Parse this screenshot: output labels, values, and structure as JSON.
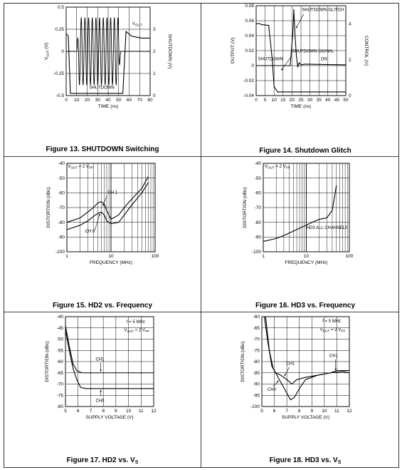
{
  "figures": [
    {
      "caption": "Figure 13. SHUTDOWN Switching"
    },
    {
      "caption": "Figure 14. Shutdown Glitch"
    },
    {
      "caption": "Figure 15. HD2 vs. Frequency"
    },
    {
      "caption": "Figure 16. HD3 vs. Frequency"
    },
    {
      "caption_main": "Figure 17. HD2 vs. V",
      "caption_sub": "S"
    },
    {
      "caption_main": "Figure 18. HD3 vs. V",
      "caption_sub": "S"
    }
  ],
  "chart_data": [
    {
      "type": "line",
      "xlabel": "TIME (ns)",
      "ylabel": "VOUT (V)",
      "y2label": "SHUTDOWN (V)",
      "xlim": [
        0,
        80
      ],
      "ylim": [
        -0.5,
        0.5
      ],
      "y2lim": [
        0,
        4
      ],
      "xticks": [
        "0",
        "10",
        "20",
        "30",
        "40",
        "50",
        "60",
        "70",
        "80"
      ],
      "yticks": [
        "-0.5",
        "-0.25",
        "0",
        "0.25",
        "0.5"
      ],
      "y2ticks": [
        "0",
        "1",
        "2",
        "3"
      ],
      "annotations": [
        "VOUT",
        "SHUTDOWN"
      ],
      "series": [
        {
          "axis": "y",
          "kind": "burst",
          "x_start": 10,
          "x_end": 52,
          "amplitude": 0.38,
          "cycles": 12
        },
        {
          "axis": "y2",
          "x": [
            0,
            2,
            4,
            6,
            54,
            57,
            62,
            66,
            72,
            80
          ],
          "y": [
            2.8,
            2.7,
            0.1,
            0.1,
            0.1,
            2.9,
            2.7,
            2.65,
            2.6,
            2.6
          ]
        }
      ]
    },
    {
      "type": "line",
      "xlabel": "TIME (ns)",
      "ylabel": "OUTPUT (V)",
      "y2label": "CONTROL (V)",
      "xlim": [
        0,
        50
      ],
      "ylim": [
        -0.04,
        0.08
      ],
      "y2lim": [
        0,
        5
      ],
      "xticks": [
        "0",
        "5",
        "10",
        "15",
        "20",
        "25",
        "30",
        "35",
        "40",
        "45",
        "50"
      ],
      "yticks": [
        "-0.04",
        "-0.02",
        "0",
        "0.02",
        "0.04",
        "0.06",
        "0.08"
      ],
      "y2ticks": [
        "0",
        "2",
        "4"
      ],
      "annotations": [
        "SHUTDOWN GLITCH",
        "SHUTDOWN",
        "ON",
        "SHUTDOWN SIGNAL"
      ],
      "series": [
        {
          "axis": "y",
          "x": [
            0,
            19,
            20.5,
            21,
            21.7,
            22.5,
            23.2,
            24,
            25,
            27,
            50
          ],
          "y": [
            0.0,
            0.0,
            0.045,
            0.075,
            0.04,
            0.012,
            -0.002,
            0.004,
            0.001,
            0.002,
            0.001
          ]
        },
        {
          "axis": "y2",
          "x": [
            0,
            2,
            3,
            7,
            9,
            10,
            12,
            50
          ],
          "y": [
            4.0,
            4.0,
            3.95,
            3.9,
            2.0,
            0.5,
            0.2,
            0.2
          ]
        }
      ]
    },
    {
      "type": "line",
      "xlabel": "FREQUENCY (MHz)",
      "ylabel": "DISTORTION (dBc)",
      "xscale": "log",
      "xlim": [
        1,
        100
      ],
      "ylim": [
        -100,
        -40
      ],
      "xticks": [
        "1",
        "10",
        "100"
      ],
      "yticks": [
        "-40",
        "-50",
        "-60",
        "-70",
        "-80",
        "-90",
        "-100"
      ],
      "annotations": [
        "VOUT = 2 VPP",
        "CH 1",
        "CH 0"
      ],
      "series": [
        {
          "name": "CH 1",
          "x": [
            1,
            2,
            3,
            4,
            5,
            6,
            7,
            8,
            10,
            15,
            20,
            30,
            50,
            70
          ],
          "y": [
            -80,
            -77,
            -73,
            -70,
            -67,
            -66,
            -67.5,
            -72,
            -78,
            -75,
            -70,
            -64,
            -57,
            -49
          ]
        },
        {
          "name": "CH 0",
          "x": [
            1,
            2,
            3,
            4,
            5,
            6,
            7,
            8,
            10,
            15,
            20,
            30,
            50,
            70
          ],
          "y": [
            -85,
            -82,
            -79,
            -76,
            -74,
            -73,
            -75,
            -79,
            -81,
            -80,
            -75,
            -68,
            -60,
            -53
          ]
        }
      ]
    },
    {
      "type": "line",
      "xlabel": "FREQUENCY (MHz)",
      "ylabel": "DISTORTION (dBc)",
      "xscale": "log",
      "xlim": [
        1,
        100
      ],
      "ylim": [
        -100,
        -40
      ],
      "xticks": [
        "1",
        "10",
        "100"
      ],
      "yticks": [
        "-40",
        "-50",
        "-60",
        "-70",
        "-80",
        "-90",
        "-100"
      ],
      "annotations": [
        "VOUT = 2 VPP",
        "HD3 ALL CHANNELS"
      ],
      "series": [
        {
          "name": "HD3 ALL CHANNELS",
          "x": [
            1,
            2,
            3,
            5,
            7,
            10,
            15,
            20,
            30,
            40,
            50
          ],
          "y": [
            -93,
            -91,
            -89,
            -86,
            -84,
            -82,
            -79.5,
            -78,
            -77,
            -72,
            -55
          ]
        }
      ]
    },
    {
      "type": "line",
      "xlabel": "SUPPLY VOLTAGE (V)",
      "ylabel": "DISTORTION (dBc)",
      "xlim": [
        5,
        12
      ],
      "ylim": [
        -80,
        -40
      ],
      "xticks": [
        "5",
        "6",
        "7",
        "8",
        "9",
        "10",
        "11",
        "12"
      ],
      "yticks": [
        "-40",
        "-45",
        "-50",
        "-55",
        "-60",
        "-65",
        "-70",
        "-75",
        "-80"
      ],
      "annotations": [
        "f = 5 MHz",
        "VOUT = 2 VPP",
        "CH1",
        "CH0"
      ],
      "series": [
        {
          "name": "CH1",
          "x": [
            5,
            5.3,
            5.6,
            5.9,
            6.3,
            7,
            12
          ],
          "y": [
            -44,
            -53,
            -61,
            -64,
            -65,
            -65,
            -65
          ]
        },
        {
          "name": "CH0",
          "x": [
            5,
            5.3,
            5.6,
            5.9,
            6.2,
            6.6,
            7,
            12
          ],
          "y": [
            -46,
            -55,
            -63,
            -68,
            -71.5,
            -72,
            -72,
            -72
          ]
        }
      ]
    },
    {
      "type": "line",
      "xlabel": "SUPPLY VOLTAGE (V)",
      "ylabel": "DISTORTION (dBc)",
      "xlim": [
        5,
        12
      ],
      "ylim": [
        -100,
        -60
      ],
      "xticks": [
        "5",
        "6",
        "7",
        "8",
        "9",
        "10",
        "11",
        "12"
      ],
      "yticks": [
        "-60",
        "-65",
        "-70",
        "-75",
        "-80",
        "-85",
        "-90",
        "-95",
        "-100"
      ],
      "annotations": [
        "f = 5 MHz",
        "VOUT = 2 VPP",
        "CH1",
        "CH0"
      ],
      "series": [
        {
          "name": "CH1",
          "x": [
            5.2,
            5.5,
            5.8,
            6.1,
            6.5,
            7,
            7.4,
            7.8,
            8.5,
            9.5,
            10.5,
            11,
            11.5,
            12
          ],
          "y": [
            -60,
            -72,
            -82,
            -85,
            -86,
            -88,
            -90,
            -88,
            -87,
            -86,
            -85,
            -84,
            -84,
            -84
          ]
        },
        {
          "name": "CH0",
          "x": [
            5.3,
            5.6,
            5.9,
            6.2,
            6.6,
            7,
            7.3,
            7.6,
            8,
            8.5,
            9.5,
            10.5,
            11.5,
            12
          ],
          "y": [
            -60,
            -75,
            -83,
            -86,
            -90,
            -94,
            -97,
            -96,
            -92,
            -88,
            -86,
            -85,
            -84.5,
            -85
          ]
        }
      ]
    }
  ]
}
